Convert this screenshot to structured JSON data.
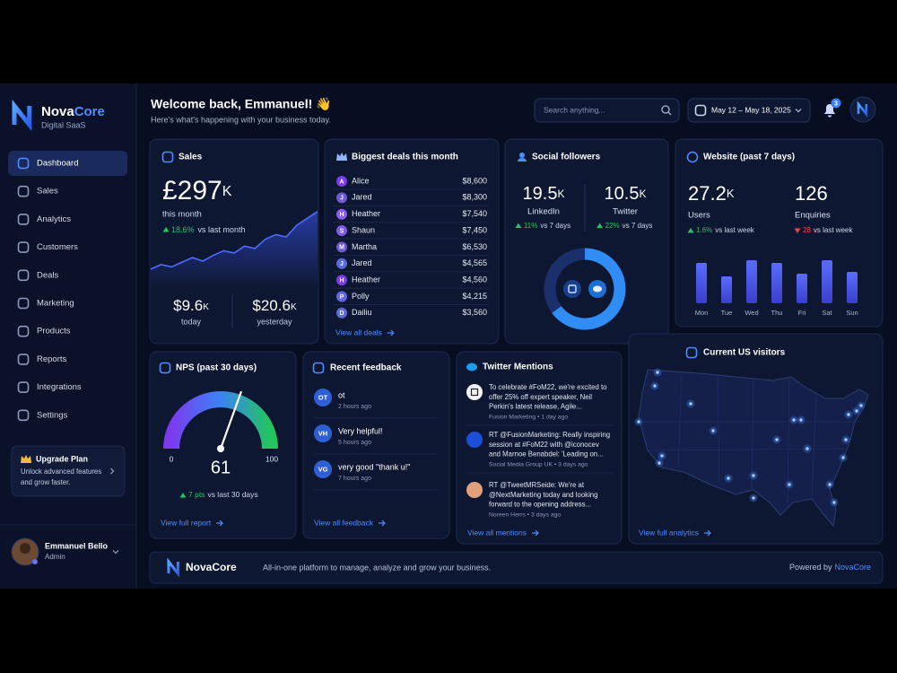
{
  "brand": {
    "name_a": "Nova",
    "name_b": "Core",
    "tagline": "Digital SaaS"
  },
  "nav": [
    "Dashboard",
    "Sales",
    "Analytics",
    "Customers",
    "Deals",
    "Marketing",
    "Products",
    "Reports",
    "Integrations",
    "Settings"
  ],
  "upgrade": {
    "title": "Upgrade Plan",
    "lines": [
      "Unlock advanced features",
      "and grow faster."
    ]
  },
  "user": {
    "name": "Emmanuel Bello",
    "role": "Admin"
  },
  "header": {
    "title": "Welcome back, Emmanuel! 👋",
    "subtitle": "Here's what's happening with your business today.",
    "search_placeholder": "Search anything...",
    "date_range": "May 12 – May 18, 2025",
    "notifications": 3
  },
  "sales": {
    "title": "Sales",
    "amount": "£297",
    "amount_unit": "K",
    "period": "this month",
    "change": "18.6%",
    "change_note": "vs last month",
    "trend": {
      "values": [
        14,
        18,
        16,
        20,
        24,
        21,
        26,
        30,
        28,
        34,
        32,
        40,
        44,
        42,
        52,
        58,
        64
      ],
      "ylim": [
        0,
        70
      ]
    },
    "today": {
      "value": "$9.6",
      "unit": "K",
      "label": "today"
    },
    "yesterday": {
      "value": "$20.6",
      "unit": "K",
      "label": "yesterday"
    }
  },
  "deals": {
    "title": "Biggest deals this month",
    "rows": [
      {
        "initial": "A",
        "name": "Alice",
        "amount": "$8,600"
      },
      {
        "initial": "J",
        "name": "Jared",
        "amount": "$8,300"
      },
      {
        "initial": "H",
        "name": "Heather",
        "amount": "$7,540"
      },
      {
        "initial": "S",
        "name": "Shaun",
        "amount": "$7,450"
      },
      {
        "initial": "M",
        "name": "Martha",
        "amount": "$6,530"
      },
      {
        "initial": "J",
        "name": "Jared",
        "amount": "$4,565"
      },
      {
        "initial": "H",
        "name": "Heather",
        "amount": "$4,560"
      },
      {
        "initial": "P",
        "name": "Polly",
        "amount": "$4,215"
      },
      {
        "initial": "D",
        "name": "Dailiu",
        "amount": "$3,560"
      }
    ],
    "link": "View all deals"
  },
  "social": {
    "title": "Social followers",
    "items": [
      {
        "value": 19.5,
        "unit": "K",
        "label": "LinkedIn",
        "change": "11%",
        "change_note": "vs 7 days"
      },
      {
        "value": 10.5,
        "unit": "K",
        "label": "Twitter",
        "change": "22%",
        "change_note": "vs 7 days"
      }
    ]
  },
  "website": {
    "title": "Website (past 7 days)",
    "stats": [
      {
        "value": 27.2,
        "unit": "K",
        "label": "Users",
        "change": "1.6%",
        "change_note": "vs last week",
        "trend": "up"
      },
      {
        "value": 126,
        "label": "Enquiries",
        "change": "28",
        "change_note": "vs last week",
        "trend": "down"
      }
    ],
    "chart": {
      "type": "bar",
      "categories": [
        "Mon",
        "Tue",
        "Wed",
        "Thu",
        "Fri",
        "Sat",
        "Sun"
      ],
      "values": [
        45,
        30,
        48,
        45,
        33,
        48,
        35
      ],
      "ylim": [
        0,
        50
      ]
    }
  },
  "nps": {
    "title": "NPS (past 30 days)",
    "value": 61,
    "lim": [
      0,
      100
    ],
    "change": "7 pts",
    "change_note": "vs last 30 days",
    "link": "View full report"
  },
  "feedback": {
    "title": "Recent feedback",
    "items": [
      {
        "initials": "OT",
        "text": "ot",
        "time": "2 hours ago"
      },
      {
        "initials": "VH",
        "text": "Very helpful!",
        "time": "5 hours ago"
      },
      {
        "initials": "VG",
        "text": "very good \"thank u!\"",
        "time": "7 hours ago"
      }
    ],
    "link": "View all feedback"
  },
  "twitter": {
    "title": "Twitter Mentions",
    "items": [
      {
        "lines": [
          "To celebrate #FoM22, we're excited to",
          "offer 25% off expert speaker, Neil",
          "Perkin's latest release, Agile..."
        ],
        "meta": "Fusion Marketing • 1 day ago"
      },
      {
        "lines": [
          "RT @FusionMarketing: Really inspiring",
          "session at #FoM22 with @iconocev",
          "and Marnoe Benabdel: 'Leading on..."
        ],
        "meta": "Social Media Group UK • 3 days ago"
      },
      {
        "lines": [
          "RT @TweetMRSeide: We're at",
          "@NextMarketing today and looking",
          "forward to the opening address..."
        ],
        "meta": "Noreen Herrs • 3 days ago"
      }
    ],
    "link": "View all mentions"
  },
  "visitors": {
    "title": "Current US visitors",
    "link": "View full analytics"
  },
  "footer": {
    "brand": "NovaCore",
    "tagline": "All-in-one platform to manage, analyze and grow your business.",
    "powered_by": "Powered by",
    "powered_brand": "NovaCore"
  }
}
